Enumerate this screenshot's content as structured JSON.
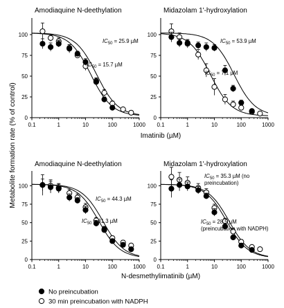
{
  "figure": {
    "y_label": "Metabolite formation rate (% of control)",
    "legend": [
      {
        "marker": "filled-circle",
        "label": "No preincubation"
      },
      {
        "marker": "open-circle",
        "label": "30 min preincubation with NADPH"
      }
    ]
  },
  "chart_data": [
    {
      "type": "scatter",
      "title": "Amodiaquine N-deethylation",
      "xlabel": "Imatinib (µM)",
      "x_scale": "log",
      "xlim": [
        0.1,
        1000
      ],
      "ylim": [
        0,
        120
      ],
      "x_ticks": [
        "0.1",
        "1",
        "10",
        "100",
        "1000"
      ],
      "y_ticks": [
        "0",
        "25",
        "50",
        "75",
        "100"
      ],
      "series": [
        {
          "name": "No preincubation",
          "marker": "filled",
          "x": [
            0.25,
            0.5,
            1,
            2.5,
            5,
            10,
            25,
            50,
            100
          ],
          "y": [
            89,
            85,
            89,
            83,
            77,
            67,
            43,
            22,
            12
          ],
          "err": [
            6,
            5,
            4,
            5,
            3,
            4,
            4,
            3,
            2
          ],
          "ic50": 25.9
        },
        {
          "name": "30 min preincubation with NADPH",
          "marker": "open",
          "x": [
            0.25,
            0.5,
            1,
            2.5,
            5,
            10,
            25,
            50,
            100,
            250,
            500
          ],
          "y": [
            104,
            96,
            92,
            84,
            75,
            62,
            44,
            30,
            17,
            10,
            6
          ],
          "err": [
            10,
            4,
            4,
            4,
            3,
            5,
            4,
            4,
            3,
            2,
            2
          ],
          "ic50": 15.7
        }
      ],
      "annotations": [
        {
          "text": "IC50 = 25.9 µM",
          "series": 0
        },
        {
          "text": "IC50 = 15.7 µM",
          "series": 1
        }
      ]
    },
    {
      "type": "scatter",
      "title": "Midazolam 1'-hydroxylation",
      "xlabel": "Imatinib (µM)",
      "x_scale": "log",
      "xlim": [
        0.1,
        1000
      ],
      "ylim": [
        0,
        120
      ],
      "x_ticks": [
        "0.1",
        "1",
        "10",
        "100",
        "1000"
      ],
      "y_ticks": [
        "0",
        "25",
        "50",
        "75",
        "100"
      ],
      "series": [
        {
          "name": "No preincubation",
          "marker": "filled",
          "x": [
            0.25,
            0.5,
            1,
            2.5,
            5,
            10,
            25,
            50,
            100,
            250
          ],
          "y": [
            97,
            90,
            90,
            87,
            85,
            84,
            57,
            35,
            18,
            8
          ],
          "err": [
            6,
            5,
            4,
            4,
            5,
            4,
            6,
            4,
            3,
            2
          ],
          "ic50": 53.9
        },
        {
          "name": "30 min preincubation with NADPH",
          "marker": "open",
          "x": [
            0.25,
            0.5,
            1,
            2.5,
            5,
            10,
            25,
            50,
            100,
            250,
            500
          ],
          "y": [
            104,
            97,
            89,
            76,
            57,
            37,
            22,
            16,
            12,
            7,
            5
          ],
          "err": [
            9,
            5,
            5,
            6,
            8,
            10,
            6,
            4,
            3,
            2,
            2
          ],
          "ic50": 7.1
        }
      ],
      "annotations": [
        {
          "text": "IC50 = 53.9 µM",
          "series": 0
        },
        {
          "text": "IC50 = 7.1 µM",
          "series": 1
        }
      ]
    },
    {
      "type": "scatter",
      "title": "Amodiaquine N-deethylation",
      "xlabel": "N-desmethylimatinib (µM)",
      "x_scale": "log",
      "xlim": [
        0.1,
        1000
      ],
      "ylim": [
        0,
        120
      ],
      "x_ticks": [
        "0.1",
        "1",
        "10",
        "100",
        "1000"
      ],
      "y_ticks": [
        "0",
        "25",
        "50",
        "75",
        "100"
      ],
      "series": [
        {
          "name": "No preincubation",
          "marker": "filled",
          "x": [
            0.25,
            0.5,
            1,
            2.5,
            5,
            10,
            25,
            50,
            100,
            250,
            500
          ],
          "y": [
            101,
            98,
            96,
            84,
            80,
            67,
            49,
            41,
            25,
            20,
            14
          ],
          "err": [
            14,
            8,
            6,
            5,
            4,
            5,
            4,
            4,
            3,
            3,
            2
          ],
          "ic50": 44.3
        },
        {
          "name": "30 min preincubation with NADPH",
          "marker": "open",
          "x": [
            0.25,
            0.5,
            1,
            2.5,
            5,
            10,
            25,
            50,
            100,
            250,
            500
          ],
          "y": [
            101,
            100,
            97,
            90,
            84,
            71,
            53,
            40,
            29,
            23,
            19
          ],
          "err": [
            8,
            8,
            6,
            5,
            5,
            5,
            4,
            4,
            3,
            3,
            2
          ],
          "ic50": 31.3
        }
      ],
      "annotations": [
        {
          "text": "IC50 = 44.3 µM",
          "series": 0
        },
        {
          "text": "IC50 = 31.3 µM",
          "series": 1
        }
      ]
    },
    {
      "type": "scatter",
      "title": "Midazolam 1'-hydroxylation",
      "xlabel": "N-desmethylimatinib (µM)",
      "x_scale": "log",
      "xlim": [
        0.1,
        1000
      ],
      "ylim": [
        0,
        120
      ],
      "x_ticks": [
        "0.1",
        "1",
        "10",
        "100",
        "1000"
      ],
      "y_ticks": [
        "0",
        "25",
        "50",
        "75",
        "100"
      ],
      "series": [
        {
          "name": "No preincubation",
          "marker": "filled",
          "x": [
            0.25,
            0.5,
            1,
            2.5,
            5,
            10,
            25,
            50,
            100,
            250
          ],
          "y": [
            96,
            101,
            99,
            94,
            86,
            64,
            45,
            30,
            19,
            13
          ],
          "err": [
            12,
            8,
            6,
            5,
            4,
            5,
            4,
            3,
            3,
            2
          ],
          "ic50": 35.3
        },
        {
          "name": "30 min preincubation with NADPH",
          "marker": "open",
          "x": [
            0.25,
            0.5,
            1,
            2.5,
            5,
            10,
            25,
            50,
            100,
            250,
            500
          ],
          "y": [
            112,
            108,
            104,
            97,
            91,
            70,
            52,
            38,
            24,
            17,
            14
          ],
          "err": [
            13,
            10,
            8,
            6,
            5,
            5,
            4,
            4,
            3,
            2,
            2
          ],
          "ic50": 28.5
        }
      ],
      "annotations": [
        {
          "text": "IC50 = 35.3 µM (no",
          "text2": "preincubation)",
          "series": 0
        },
        {
          "text": "IC50 = 28.5 µM",
          "text2": "(preincubation with NADPH)",
          "series": 1
        }
      ]
    }
  ]
}
